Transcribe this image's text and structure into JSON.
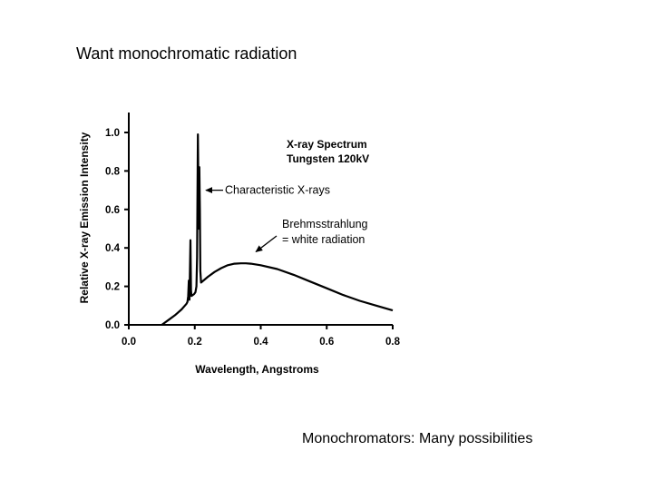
{
  "slide": {
    "title": "Want monochromatic radiation",
    "caption": "Monochromators: Many possibilities"
  },
  "chart_data": {
    "type": "line",
    "title": [
      "X-ray Spectrum",
      "Tungsten 120kV"
    ],
    "xlabel": "Wavelength, Angstroms",
    "ylabel": "Relative X-ray Emission Intensity",
    "xlim": [
      0.0,
      0.8
    ],
    "ylim": [
      0.0,
      1.0
    ],
    "xticks": [
      "0.0",
      "0.2",
      "0.4",
      "0.6",
      "0.8"
    ],
    "yticks": [
      "0.0",
      "0.2",
      "0.4",
      "0.6",
      "0.8",
      "1.0"
    ],
    "grid": false,
    "series": [
      {
        "x": [
          0.1,
          0.12,
          0.14,
          0.16,
          0.175,
          0.178,
          0.18,
          0.182,
          0.184,
          0.1855,
          0.187,
          0.1885,
          0.19,
          0.194,
          0.198,
          0.202,
          0.205,
          0.207,
          0.208,
          0.2095,
          0.211,
          0.2125,
          0.214,
          0.2155,
          0.217,
          0.219,
          0.24,
          0.26,
          0.28,
          0.3,
          0.32,
          0.34,
          0.355,
          0.37,
          0.4,
          0.45,
          0.5,
          0.55,
          0.6,
          0.65,
          0.7,
          0.75,
          0.8
        ],
        "y": [
          0.0,
          0.025,
          0.05,
          0.08,
          0.11,
          0.12,
          0.15,
          0.23,
          0.13,
          0.3,
          0.44,
          0.18,
          0.15,
          0.155,
          0.16,
          0.17,
          0.2,
          0.35,
          0.65,
          0.99,
          0.7,
          0.5,
          0.82,
          0.6,
          0.28,
          0.22,
          0.25,
          0.275,
          0.295,
          0.31,
          0.318,
          0.32,
          0.32,
          0.318,
          0.31,
          0.29,
          0.26,
          0.225,
          0.19,
          0.155,
          0.125,
          0.1,
          0.075
        ]
      }
    ],
    "annotations": [
      {
        "text": [
          "Characteristic X-rays"
        ],
        "points_to": {
          "x": 0.212,
          "y": 0.7
        }
      },
      {
        "text": [
          "Brehmsstrahlung",
          "= white radiation"
        ],
        "points_to": {
          "x": 0.38,
          "y": 0.38
        }
      }
    ]
  }
}
